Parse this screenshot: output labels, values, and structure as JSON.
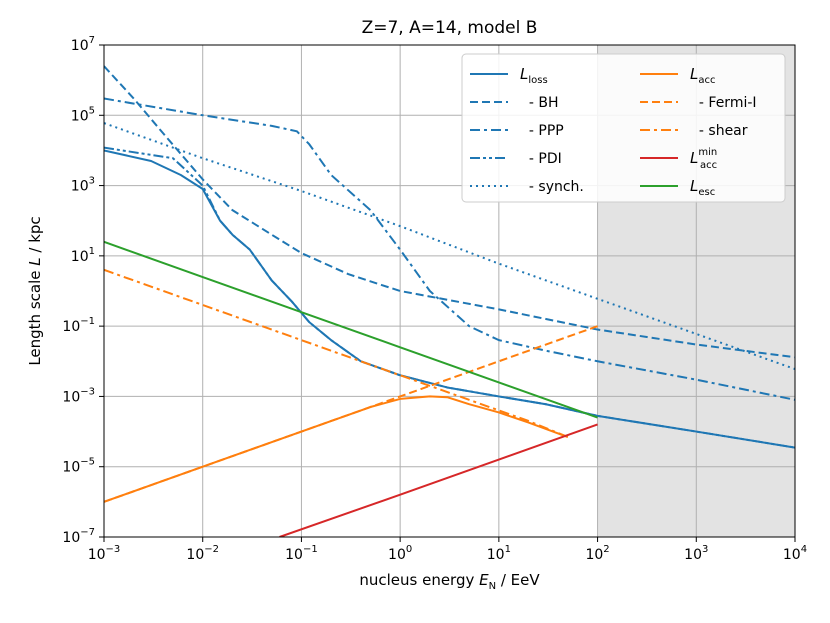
{
  "chart_data": {
    "type": "line",
    "title": "Z=7, A=14, model B",
    "xlabel": {
      "prefix": "nucleus energy ",
      "sym": "E",
      "sub": "N",
      "suffix": " / EeV"
    },
    "ylabel": {
      "prefix": "Length scale ",
      "sym": "L",
      "suffix": " / kpc"
    },
    "x_scale": "log",
    "y_scale": "log",
    "xlim": [
      0.001,
      10000
    ],
    "ylim": [
      1e-07,
      10000000.0
    ],
    "x_ticks": [
      {
        "value": 0.001,
        "base": "10",
        "exp": "−3"
      },
      {
        "value": 0.01,
        "base": "10",
        "exp": "−2"
      },
      {
        "value": 0.1,
        "base": "10",
        "exp": "−1"
      },
      {
        "value": 1,
        "base": "10",
        "exp": "0"
      },
      {
        "value": 10,
        "base": "10",
        "exp": "1"
      },
      {
        "value": 100,
        "base": "10",
        "exp": "2"
      },
      {
        "value": 1000,
        "base": "10",
        "exp": "3"
      },
      {
        "value": 10000,
        "base": "10",
        "exp": "4"
      }
    ],
    "y_ticks": [
      {
        "value": 1e-07,
        "base": "10",
        "exp": "−7"
      },
      {
        "value": 1e-05,
        "base": "10",
        "exp": "−5"
      },
      {
        "value": 0.001,
        "base": "10",
        "exp": "−3"
      },
      {
        "value": 0.1,
        "base": "10",
        "exp": "−1"
      },
      {
        "value": 10,
        "base": "10",
        "exp": "1"
      },
      {
        "value": 1000,
        "base": "10",
        "exp": "3"
      },
      {
        "value": 100000,
        "base": "10",
        "exp": "5"
      },
      {
        "value": 10000000,
        "base": "10",
        "exp": "7"
      }
    ],
    "grid": true,
    "shaded_region": {
      "x_from": 100,
      "x_to": 10000,
      "color": "#e3e3e3"
    },
    "legend_position": "top-right",
    "series": [
      {
        "name": "L_loss",
        "label": {
          "sym": "L",
          "sub": "loss",
          "sup": ""
        },
        "color": "#1f77b4",
        "style": "solid",
        "points": [
          [
            0.001,
            10000
          ],
          [
            0.003,
            5000
          ],
          [
            0.006,
            2000
          ],
          [
            0.01,
            800
          ],
          [
            0.015,
            100
          ],
          [
            0.02,
            40
          ],
          [
            0.03,
            15
          ],
          [
            0.05,
            2
          ],
          [
            0.08,
            0.5
          ],
          [
            0.12,
            0.13
          ],
          [
            0.2,
            0.04
          ],
          [
            0.4,
            0.01
          ],
          [
            1,
            0.004
          ],
          [
            3,
            0.0018
          ],
          [
            10,
            0.001
          ],
          [
            30,
            0.0006
          ],
          [
            100,
            0.00028
          ],
          [
            1000,
            0.0001
          ],
          [
            10000,
            3.5e-05
          ]
        ]
      },
      {
        "name": "BH",
        "label": {
          "sym": "",
          "sub": "",
          "sup": "",
          "text": "  - BH"
        },
        "color": "#1f77b4",
        "style": "dashed",
        "points": [
          [
            0.001,
            2500000
          ],
          [
            0.002,
            300000
          ],
          [
            0.004,
            30000
          ],
          [
            0.01,
            1500
          ],
          [
            0.02,
            200
          ],
          [
            0.05,
            40
          ],
          [
            0.1,
            12
          ],
          [
            0.3,
            3
          ],
          [
            1,
            1
          ],
          [
            10,
            0.3
          ],
          [
            100,
            0.08
          ],
          [
            1000,
            0.03
          ],
          [
            10000,
            0.013
          ]
        ]
      },
      {
        "name": "PPP",
        "label": {
          "sym": "",
          "sub": "",
          "sup": "",
          "text": "  - PPP"
        },
        "color": "#1f77b4",
        "style": "dashdot",
        "points": [
          [
            0.001,
            300000
          ],
          [
            0.01,
            100000
          ],
          [
            0.05,
            50000
          ],
          [
            0.09,
            35000
          ],
          [
            0.12,
            15000
          ],
          [
            0.2,
            2000
          ],
          [
            0.5,
            200
          ],
          [
            1,
            15
          ],
          [
            2,
            1
          ],
          [
            5,
            0.1
          ],
          [
            10,
            0.04
          ],
          [
            30,
            0.02
          ],
          [
            100,
            0.01
          ],
          [
            1000,
            0.003
          ],
          [
            10000,
            0.0008
          ]
        ]
      },
      {
        "name": "PDI",
        "label": {
          "sym": "",
          "sub": "",
          "sup": "",
          "text": "  - PDI"
        },
        "color": "#1f77b4",
        "style": "dashdotdot",
        "points": [
          [
            0.001,
            12000
          ],
          [
            0.005,
            6000
          ],
          [
            0.01,
            1000
          ],
          [
            0.015,
            100
          ],
          [
            0.02,
            40
          ],
          [
            0.03,
            15
          ],
          [
            0.05,
            2
          ],
          [
            0.08,
            0.5
          ],
          [
            0.12,
            0.13
          ],
          [
            0.2,
            0.04
          ],
          [
            0.4,
            0.01
          ],
          [
            1,
            0.004
          ],
          [
            3,
            0.0018
          ],
          [
            10,
            0.001
          ],
          [
            30,
            0.0006
          ],
          [
            100,
            0.00028
          ],
          [
            1000,
            0.0001
          ],
          [
            10000,
            3.5e-05
          ]
        ]
      },
      {
        "name": "synch.",
        "label": {
          "sym": "",
          "sub": "",
          "sup": "",
          "text": "  - synch."
        },
        "color": "#1f77b4",
        "style": "dotted",
        "points": [
          [
            0.001,
            60000
          ],
          [
            0.01,
            6000
          ],
          [
            0.1,
            700
          ],
          [
            1,
            70
          ],
          [
            10,
            6
          ],
          [
            100,
            0.6
          ],
          [
            1000,
            0.06
          ],
          [
            10000,
            0.006
          ]
        ]
      },
      {
        "name": "L_acc",
        "label": {
          "sym": "L",
          "sub": "acc",
          "sup": ""
        },
        "color": "#ff7f0e",
        "style": "solid",
        "points": [
          [
            0.001,
            1e-06
          ],
          [
            0.01,
            1e-05
          ],
          [
            0.1,
            0.0001
          ],
          [
            0.5,
            0.0005
          ],
          [
            1,
            0.00085
          ],
          [
            2,
            0.001
          ],
          [
            3,
            0.00095
          ],
          [
            5,
            0.0006
          ],
          [
            10,
            0.00035
          ],
          [
            20,
            0.00018
          ],
          [
            50,
            7e-05
          ]
        ]
      },
      {
        "name": "Fermi-I",
        "label": {
          "sym": "",
          "sub": "",
          "sup": "",
          "text": "  - Fermi-I"
        },
        "color": "#ff7f0e",
        "style": "dashed",
        "points": [
          [
            0.001,
            1e-06
          ],
          [
            0.01,
            1e-05
          ],
          [
            0.1,
            0.0001
          ],
          [
            1,
            0.001
          ],
          [
            10,
            0.01
          ],
          [
            100,
            0.1
          ]
        ]
      },
      {
        "name": "shear",
        "label": {
          "sym": "",
          "sub": "",
          "sup": "",
          "text": "  - shear"
        },
        "color": "#ff7f0e",
        "style": "dashdot",
        "points": [
          [
            0.001,
            4
          ],
          [
            0.01,
            0.4
          ],
          [
            0.1,
            0.04
          ],
          [
            1,
            0.004
          ],
          [
            5,
            0.0008
          ],
          [
            20,
            0.0002
          ],
          [
            50,
            7e-05
          ]
        ]
      },
      {
        "name": "L_acc^min",
        "label": {
          "sym": "L",
          "sub": "acc",
          "sup": "min"
        },
        "color": "#d62728",
        "style": "solid",
        "points": [
          [
            0.06,
            1e-07
          ],
          [
            1,
            1.6e-06
          ],
          [
            10,
            1.6e-05
          ],
          [
            100,
            0.00016
          ]
        ]
      },
      {
        "name": "L_esc",
        "label": {
          "sym": "L",
          "sub": "esc",
          "sup": ""
        },
        "color": "#2ca02c",
        "style": "solid",
        "points": [
          [
            0.001,
            25
          ],
          [
            0.01,
            2.5
          ],
          [
            0.1,
            0.25
          ],
          [
            1,
            0.025
          ],
          [
            10,
            0.0025
          ],
          [
            100,
            0.00025
          ]
        ]
      }
    ],
    "legend_columns": [
      [
        "L_loss",
        "BH",
        "PPP",
        "PDI",
        "synch."
      ],
      [
        "L_acc",
        "Fermi-I",
        "shear",
        "L_acc^min",
        "L_esc"
      ]
    ]
  }
}
